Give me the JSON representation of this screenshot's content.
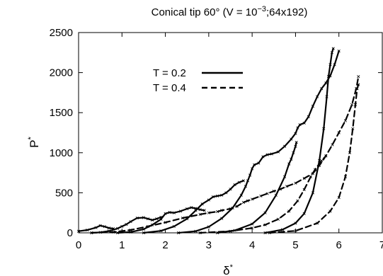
{
  "chart_data": {
    "type": "line",
    "title": "Conical tip 60° (V = 10",
    "title_exponent": "−3",
    "title_suffix": ";64x192)",
    "xlabel": "δ",
    "xlabel_superscript": "*",
    "ylabel": "P",
    "ylabel_superscript": "*",
    "xlim": [
      0,
      7
    ],
    "ylim": [
      0,
      2500
    ],
    "xticks": [
      "0",
      "1",
      "2",
      "3",
      "4",
      "5",
      "6",
      "7"
    ],
    "yticks": [
      "0",
      "500",
      "1000",
      "1500",
      "2000",
      "2500"
    ],
    "xtick_values": [
      0,
      1,
      2,
      3,
      4,
      5,
      6,
      7
    ],
    "ytick_values": [
      0,
      500,
      1000,
      1500,
      2000,
      2500
    ],
    "grid": false,
    "legend_position": "top-center",
    "series": [
      {
        "name": "T = 0.2",
        "dash": "solid",
        "segments": [
          [
            [
              0,
              20
            ],
            [
              0.2,
              35
            ],
            [
              0.4,
              65
            ],
            [
              0.5,
              90
            ],
            [
              0.6,
              78
            ],
            [
              0.7,
              60
            ],
            [
              0.8,
              52
            ]
          ],
          [
            [
              0.3,
              0
            ],
            [
              0.5,
              6
            ],
            [
              0.7,
              22
            ],
            [
              0.9,
              55
            ],
            [
              1.0,
              80
            ],
            [
              1.1,
              105
            ],
            [
              1.2,
              140
            ],
            [
              1.35,
              185
            ],
            [
              1.5,
              190
            ],
            [
              1.6,
              175
            ],
            [
              1.7,
              160
            ],
            [
              1.8,
              175
            ],
            [
              1.9,
              195
            ]
          ],
          [
            [
              0.9,
              0
            ],
            [
              1.2,
              10
            ],
            [
              1.5,
              45
            ],
            [
              1.7,
              100
            ],
            [
              1.9,
              170
            ],
            [
              2.0,
              240
            ],
            [
              2.1,
              255
            ],
            [
              2.2,
              250
            ],
            [
              2.35,
              270
            ],
            [
              2.5,
              300
            ],
            [
              2.6,
              315
            ],
            [
              2.7,
              305
            ],
            [
              2.8,
              290
            ],
            [
              2.9,
              280
            ]
          ],
          [
            [
              1.5,
              0
            ],
            [
              1.9,
              25
            ],
            [
              2.2,
              80
            ],
            [
              2.5,
              175
            ],
            [
              2.7,
              280
            ],
            [
              2.85,
              360
            ],
            [
              3.0,
              410
            ],
            [
              3.1,
              450
            ],
            [
              3.2,
              460
            ],
            [
              3.3,
              470
            ],
            [
              3.4,
              500
            ],
            [
              3.5,
              545
            ],
            [
              3.6,
              600
            ],
            [
              3.7,
              630
            ],
            [
              3.8,
              650
            ]
          ],
          [
            [
              2.3,
              0
            ],
            [
              2.7,
              20
            ],
            [
              3.0,
              75
            ],
            [
              3.3,
              180
            ],
            [
              3.55,
              310
            ],
            [
              3.75,
              470
            ],
            [
              3.85,
              580
            ],
            [
              3.9,
              650
            ],
            [
              3.95,
              720
            ],
            [
              4.0,
              800
            ],
            [
              4.05,
              850
            ],
            [
              4.15,
              870
            ],
            [
              4.25,
              950
            ],
            [
              4.35,
              975
            ],
            [
              4.45,
              985
            ],
            [
              4.6,
              1010
            ],
            [
              4.75,
              1080
            ],
            [
              4.9,
              1170
            ],
            [
              5.0,
              1240
            ],
            [
              5.05,
              1310
            ],
            [
              5.1,
              1350
            ],
            [
              5.2,
              1370
            ],
            [
              5.3,
              1450
            ],
            [
              5.4,
              1580
            ],
            [
              5.5,
              1700
            ],
            [
              5.6,
              1800
            ],
            [
              5.7,
              1870
            ],
            [
              5.8,
              1960
            ],
            [
              5.9,
              2100
            ],
            [
              6.0,
              2270
            ]
          ],
          [
            [
              3.2,
              0
            ],
            [
              3.6,
              30
            ],
            [
              4.0,
              110
            ],
            [
              4.3,
              250
            ],
            [
              4.55,
              470
            ],
            [
              4.75,
              700
            ],
            [
              4.85,
              860
            ],
            [
              4.9,
              920
            ],
            [
              4.95,
              1000
            ],
            [
              5.0,
              1080
            ],
            [
              5.02,
              1130
            ]
          ],
          [
            [
              4.3,
              0
            ],
            [
              4.7,
              40
            ],
            [
              5.0,
              120
            ],
            [
              5.2,
              240
            ],
            [
              5.4,
              500
            ],
            [
              5.55,
              900
            ],
            [
              5.65,
              1300
            ],
            [
              5.72,
              1700
            ],
            [
              5.76,
              1950
            ],
            [
              5.8,
              2100
            ],
            [
              5.84,
              2250
            ],
            [
              5.87,
              2300
            ]
          ]
        ]
      },
      {
        "name": "T = 0.4",
        "dash": "dashed",
        "segments": [
          [
            [
              0.3,
              0
            ],
            [
              0.8,
              10
            ],
            [
              1.2,
              35
            ],
            [
              1.6,
              80
            ],
            [
              2.0,
              130
            ],
            [
              2.4,
              185
            ],
            [
              2.8,
              230
            ],
            [
              3.0,
              250
            ],
            [
              3.2,
              265
            ],
            [
              3.3,
              280
            ],
            [
              3.5,
              300
            ],
            [
              3.65,
              330
            ],
            [
              3.8,
              380
            ],
            [
              3.9,
              400
            ],
            [
              4.0,
              420
            ],
            [
              4.2,
              460
            ],
            [
              4.35,
              490
            ],
            [
              4.5,
              520
            ],
            [
              4.65,
              545
            ],
            [
              4.8,
              580
            ],
            [
              5.0,
              620
            ],
            [
              5.2,
              680
            ],
            [
              5.4,
              740
            ],
            [
              5.55,
              840
            ],
            [
              5.7,
              960
            ],
            [
              5.85,
              1100
            ],
            [
              6.0,
              1250
            ],
            [
              6.15,
              1400
            ],
            [
              6.3,
              1600
            ],
            [
              6.4,
              1800
            ],
            [
              6.45,
              1950
            ]
          ],
          [
            [
              2.8,
              0
            ],
            [
              3.5,
              20
            ],
            [
              4.0,
              60
            ],
            [
              4.3,
              100
            ],
            [
              4.6,
              170
            ],
            [
              4.85,
              270
            ],
            [
              5.05,
              400
            ],
            [
              5.2,
              540
            ],
            [
              5.35,
              700
            ],
            [
              5.45,
              790
            ],
            [
              5.6,
              900
            ],
            [
              5.7,
              960
            ]
          ],
          [
            [
              4.4,
              0
            ],
            [
              5.0,
              25
            ],
            [
              5.5,
              120
            ],
            [
              5.8,
              270
            ],
            [
              6.0,
              440
            ],
            [
              6.15,
              700
            ],
            [
              6.25,
              1000
            ],
            [
              6.32,
              1300
            ],
            [
              6.38,
              1600
            ],
            [
              6.42,
              1800
            ],
            [
              6.45,
              1850
            ]
          ]
        ]
      }
    ]
  }
}
